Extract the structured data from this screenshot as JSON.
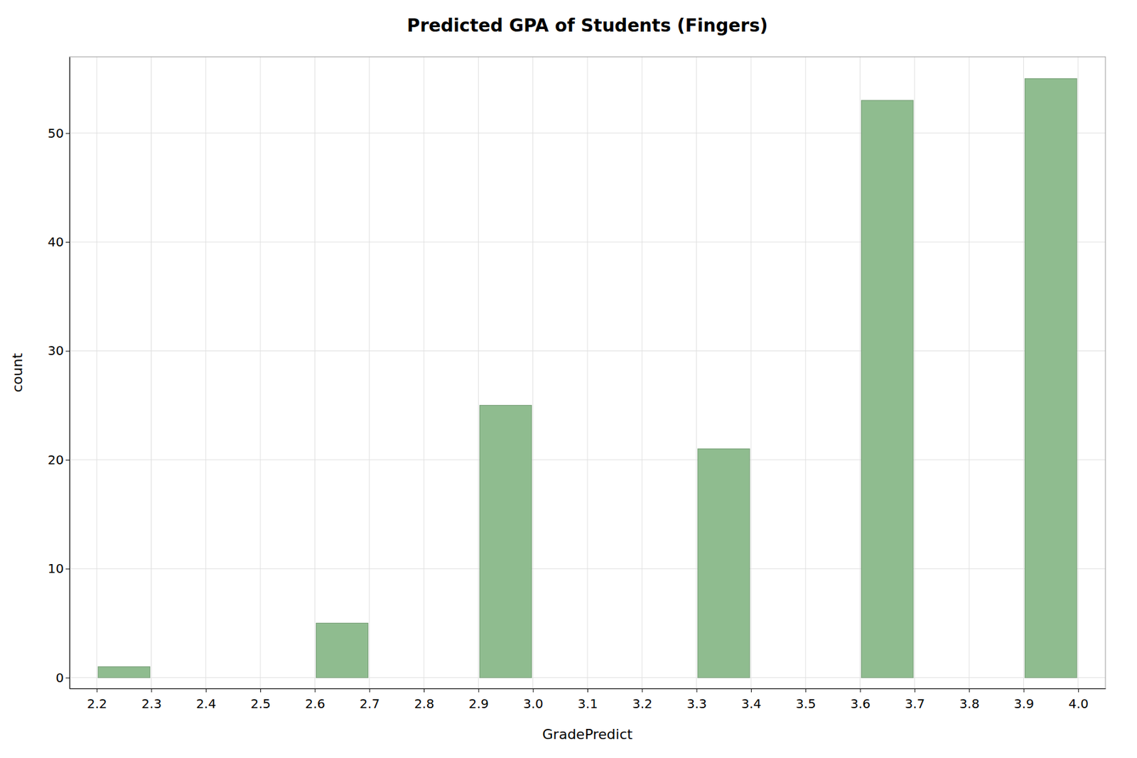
{
  "chart_data": {
    "type": "histogram",
    "title": "Predicted GPA of Students (Fingers)",
    "x_label": "GradePredict",
    "y_label": "count",
    "bins_left": [
      2.2,
      2.6,
      2.9,
      3.3,
      3.6,
      3.9
    ],
    "bins_right": [
      2.3,
      2.7,
      3.0,
      3.4,
      3.7,
      4.0
    ],
    "values": [
      1,
      5,
      25,
      21,
      53,
      55
    ],
    "color": "#8FBC8F",
    "xlim": [
      2.15,
      4.05
    ],
    "xticks": [
      2.2,
      2.3,
      2.4,
      2.5,
      2.6,
      2.7,
      2.8,
      2.9,
      {
        "value": 3.0,
        "label": "3.0"
      },
      3.1,
      3.2,
      3.3,
      3.4,
      3.5,
      3.6,
      3.7,
      3.8,
      3.9,
      {
        "value": 4.0,
        "label": "4.0"
      }
    ],
    "ylim": [
      -1,
      57
    ],
    "yticks": [
      0,
      10,
      20,
      30,
      40,
      50
    ],
    "grid": true
  }
}
